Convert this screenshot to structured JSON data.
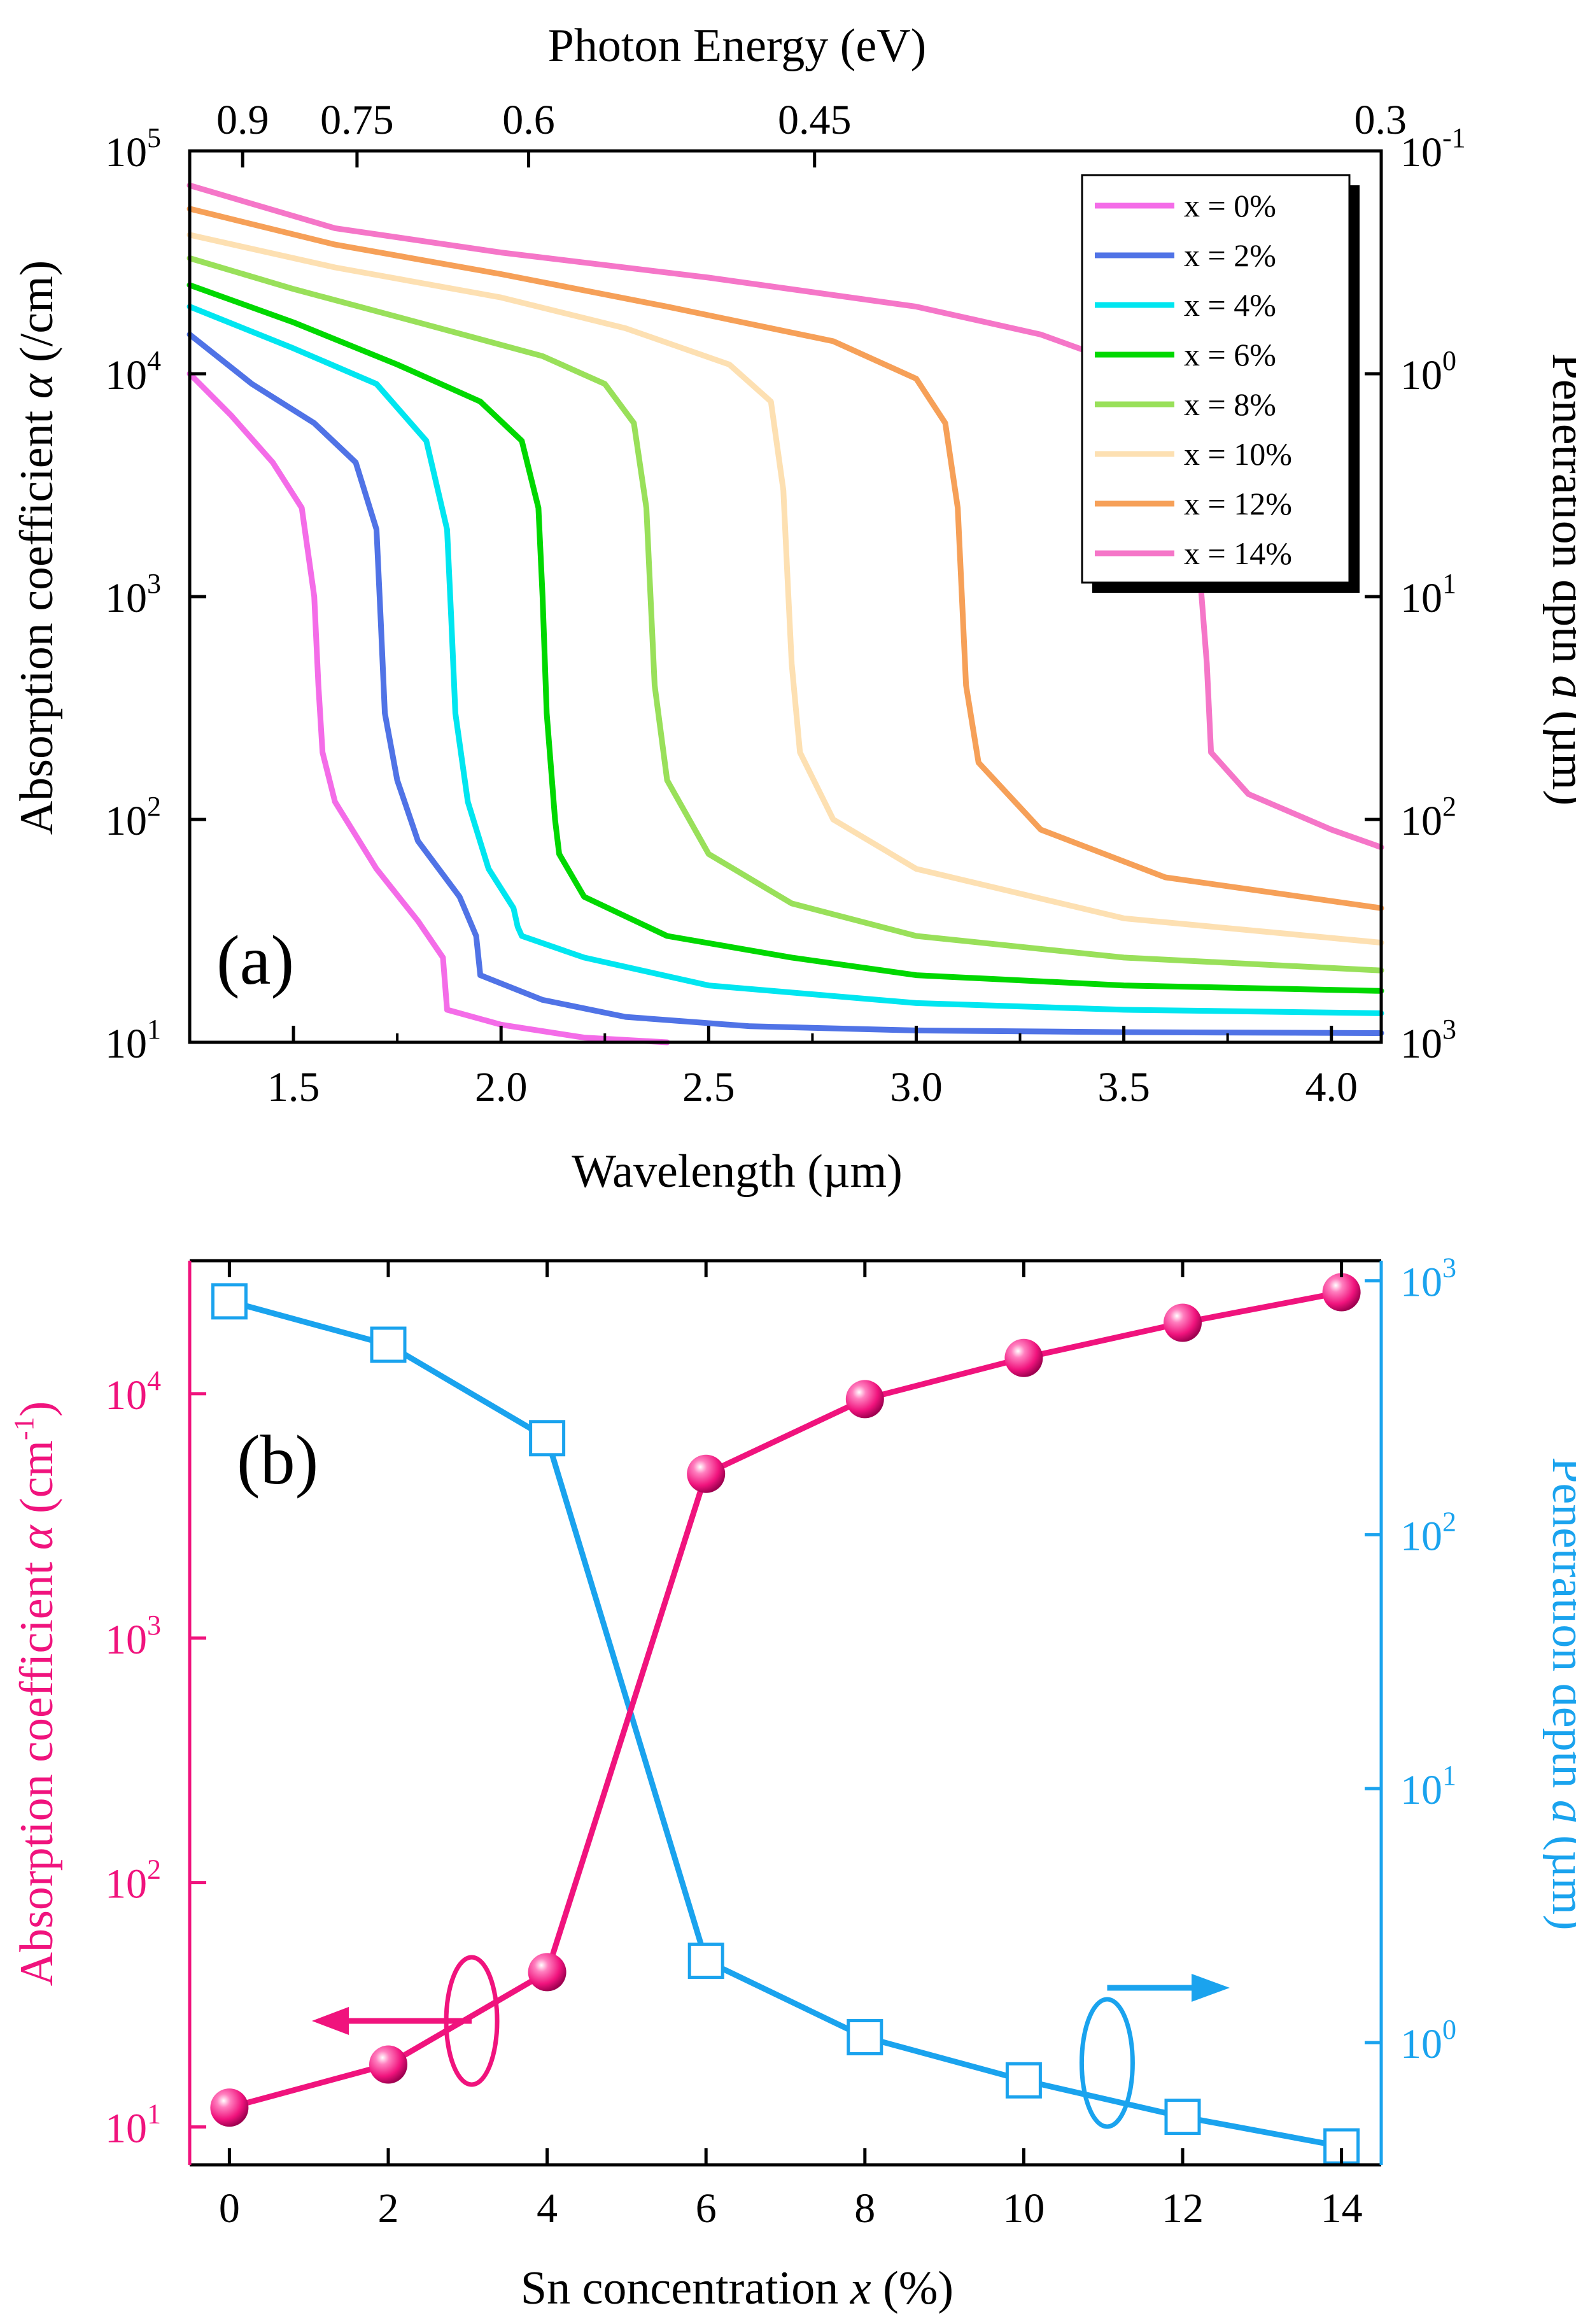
{
  "panels": [
    {
      "label": "(a)",
      "chart_data": {
        "type": "line",
        "title": "",
        "xlabel": "Wavelength (µm)",
        "ylabel": "Absorption coefficient α (/cm)",
        "ylabel_parts": {
          "pre": "Absorption coefficient ",
          "var": "α",
          "post": " (/cm)"
        },
        "y2label": "Penetration dpth d (µm)",
        "y2label_parts": {
          "pre": "Penetration dpth ",
          "var": "d",
          "post": " (µm)"
        },
        "x2label": "Photon Energy (eV)",
        "xscale": "linear",
        "yscale": "log",
        "xlim": [
          1.25,
          4.12
        ],
        "ylim": [
          10,
          100000
        ],
        "x_ticks": [
          1.5,
          2.0,
          2.5,
          3.0,
          3.5,
          4.0
        ],
        "x_tick_labels": [
          "1.5",
          "2.0",
          "2.5",
          "3.0",
          "3.5",
          "4.0"
        ],
        "y_ticks": [
          {
            "value": 10,
            "base": "10",
            "exp": "1"
          },
          {
            "value": 100,
            "base": "10",
            "exp": "2"
          },
          {
            "value": 1000,
            "base": "10",
            "exp": "3"
          },
          {
            "value": 10000,
            "base": "10",
            "exp": "4"
          },
          {
            "value": 100000,
            "base": "10",
            "exp": "5"
          }
        ],
        "y2_ticks": [
          {
            "value": 100000,
            "base": "10",
            "exp": "-1"
          },
          {
            "value": 10000,
            "base": "10",
            "exp": "0"
          },
          {
            "value": 1000,
            "base": "10",
            "exp": "1"
          },
          {
            "value": 100,
            "base": "10",
            "exp": "2"
          },
          {
            "value": 10,
            "base": "10",
            "exp": "3"
          }
        ],
        "x2_ticks": [
          {
            "energy_eV": 0.9,
            "label": "0.9"
          },
          {
            "energy_eV": 0.75,
            "label": "0.75"
          },
          {
            "energy_eV": 0.6,
            "label": "0.6"
          },
          {
            "energy_eV": 0.45,
            "label": "0.45"
          },
          {
            "energy_eV": 0.3,
            "label": "0.3"
          }
        ],
        "legend_position": "top-right",
        "series": [
          {
            "name": "x = 0%",
            "color": "#f46ce8",
            "points": [
              [
                1.25,
                10000
              ],
              [
                1.35,
                6500
              ],
              [
                1.45,
                4000
              ],
              [
                1.52,
                2500
              ],
              [
                1.55,
                1000
              ],
              [
                1.56,
                400
              ],
              [
                1.57,
                200
              ],
              [
                1.6,
                120
              ],
              [
                1.7,
                60
              ],
              [
                1.8,
                35
              ],
              [
                1.86,
                24
              ],
              [
                1.87,
                14
              ],
              [
                2.0,
                12
              ],
              [
                2.2,
                10.5
              ],
              [
                2.4,
                10
              ]
            ]
          },
          {
            "name": "x = 2%",
            "color": "#5073e6",
            "points": [
              [
                1.25,
                15000
              ],
              [
                1.4,
                9000
              ],
              [
                1.55,
                6000
              ],
              [
                1.65,
                4000
              ],
              [
                1.7,
                2000
              ],
              [
                1.71,
                800
              ],
              [
                1.72,
                300
              ],
              [
                1.75,
                150
              ],
              [
                1.8,
                80
              ],
              [
                1.9,
                45
              ],
              [
                1.94,
                30
              ],
              [
                1.95,
                20
              ],
              [
                2.1,
                15.5
              ],
              [
                2.3,
                13
              ],
              [
                2.6,
                11.8
              ],
              [
                3.0,
                11.3
              ],
              [
                3.5,
                11.1
              ],
              [
                4.12,
                11
              ]
            ]
          },
          {
            "name": "x = 4%",
            "color": "#00e6f0",
            "points": [
              [
                1.25,
                20000
              ],
              [
                1.5,
                13000
              ],
              [
                1.7,
                9000
              ],
              [
                1.82,
                5000
              ],
              [
                1.87,
                2000
              ],
              [
                1.88,
                800
              ],
              [
                1.89,
                300
              ],
              [
                1.92,
                120
              ],
              [
                1.97,
                60
              ],
              [
                2.03,
                40
              ],
              [
                2.04,
                33
              ],
              [
                2.05,
                30
              ],
              [
                2.2,
                24
              ],
              [
                2.5,
                18
              ],
              [
                3.0,
                15
              ],
              [
                3.5,
                14
              ],
              [
                4.12,
                13.5
              ]
            ]
          },
          {
            "name": "x = 6%",
            "color": "#00d800",
            "points": [
              [
                1.25,
                25000
              ],
              [
                1.5,
                17000
              ],
              [
                1.75,
                11000
              ],
              [
                1.95,
                7500
              ],
              [
                2.05,
                5000
              ],
              [
                2.09,
                2500
              ],
              [
                2.1,
                1000
              ],
              [
                2.11,
                300
              ],
              [
                2.13,
                100
              ],
              [
                2.14,
                70
              ],
              [
                2.2,
                45
              ],
              [
                2.4,
                30
              ],
              [
                2.7,
                24
              ],
              [
                3.0,
                20
              ],
              [
                3.5,
                18
              ],
              [
                4.12,
                17
              ]
            ]
          },
          {
            "name": "x = 8%",
            "color": "#99e05a",
            "points": [
              [
                1.25,
                33000
              ],
              [
                1.5,
                24000
              ],
              [
                1.8,
                17000
              ],
              [
                2.1,
                12000
              ],
              [
                2.25,
                9000
              ],
              [
                2.32,
                6000
              ],
              [
                2.35,
                2500
              ],
              [
                2.36,
                1000
              ],
              [
                2.37,
                400
              ],
              [
                2.4,
                150
              ],
              [
                2.5,
                70
              ],
              [
                2.7,
                42
              ],
              [
                3.0,
                30
              ],
              [
                3.5,
                24
              ],
              [
                4.12,
                21
              ]
            ]
          },
          {
            "name": "x = 10%",
            "color": "#fde0b2",
            "points": [
              [
                1.25,
                42000
              ],
              [
                1.6,
                30000
              ],
              [
                2.0,
                22000
              ],
              [
                2.3,
                16000
              ],
              [
                2.55,
                11000
              ],
              [
                2.65,
                7500
              ],
              [
                2.68,
                3000
              ],
              [
                2.69,
                1200
              ],
              [
                2.7,
                500
              ],
              [
                2.72,
                200
              ],
              [
                2.8,
                100
              ],
              [
                3.0,
                60
              ],
              [
                3.5,
                36
              ],
              [
                4.12,
                28
              ]
            ]
          },
          {
            "name": "x = 12%",
            "color": "#f6a058",
            "points": [
              [
                1.25,
                55000
              ],
              [
                1.6,
                38000
              ],
              [
                2.0,
                28000
              ],
              [
                2.4,
                20000
              ],
              [
                2.8,
                14000
              ],
              [
                3.0,
                9500
              ],
              [
                3.07,
                6000
              ],
              [
                3.1,
                2500
              ],
              [
                3.11,
                1000
              ],
              [
                3.12,
                400
              ],
              [
                3.15,
                180
              ],
              [
                3.3,
                90
              ],
              [
                3.6,
                55
              ],
              [
                4.12,
                40
              ]
            ]
          },
          {
            "name": "x = 14%",
            "color": "#f576c8",
            "points": [
              [
                1.25,
                70000
              ],
              [
                1.6,
                45000
              ],
              [
                2.0,
                35000
              ],
              [
                2.5,
                27000
              ],
              [
                3.0,
                20000
              ],
              [
                3.3,
                15000
              ],
              [
                3.5,
                11000
              ],
              [
                3.6,
                8000
              ],
              [
                3.65,
                4000
              ],
              [
                3.68,
                1500
              ],
              [
                3.7,
                500
              ],
              [
                3.71,
                200
              ],
              [
                3.8,
                130
              ],
              [
                4.0,
                90
              ],
              [
                4.12,
                75
              ]
            ]
          }
        ]
      }
    },
    {
      "label": "(b)",
      "chart_data": {
        "type": "line",
        "title": "",
        "xlabel": "Sn concentration x (%)",
        "xlabel_parts": {
          "pre": "Sn concentration ",
          "var": "x",
          "post": " (%)"
        },
        "ylabel": "Absorption coefficient α (cm-1)",
        "ylabel_parts": {
          "pre": "Absorption coefficient ",
          "var": "α",
          "post": " (cm",
          "sup": "-1",
          "close": ")"
        },
        "y2label": "Penetration depth d (µm)",
        "y2label_parts": {
          "pre": "Penetration depth ",
          "var": "d",
          "post": " (µm)"
        },
        "xlim": [
          -0.5,
          14.5
        ],
        "ylim": [
          7,
          35000
        ],
        "y2lim": [
          0.33,
          1200
        ],
        "x_ticks": [
          0,
          2,
          4,
          6,
          8,
          10,
          12,
          14
        ],
        "x_tick_labels": [
          "0",
          "2",
          "4",
          "6",
          "8",
          "10",
          "12",
          "14"
        ],
        "y_ticks": [
          {
            "value": 10,
            "base": "10",
            "exp": "1"
          },
          {
            "value": 100,
            "base": "10",
            "exp": "2"
          },
          {
            "value": 1000,
            "base": "10",
            "exp": "3"
          },
          {
            "value": 10000,
            "base": "10",
            "exp": "4"
          }
        ],
        "y2_ticks": [
          {
            "value": 1,
            "base": "10",
            "exp": "0"
          },
          {
            "value": 10,
            "base": "10",
            "exp": "1"
          },
          {
            "value": 100,
            "base": "10",
            "exp": "2"
          },
          {
            "value": 1000,
            "base": "10",
            "exp": "3"
          }
        ],
        "colors": {
          "alpha": "#f0137d",
          "depth": "#1aa3ee"
        },
        "series": [
          {
            "name": "Absorption coefficient",
            "axis": "left",
            "marker": "sphere",
            "color": "#f0137d",
            "x": [
              0,
              2,
              4,
              6,
              8,
              10,
              12,
              14
            ],
            "values": [
              12,
              18,
              43,
              4700,
              9500,
              14000,
              19500,
              26000
            ]
          },
          {
            "name": "Penetration depth",
            "axis": "right",
            "marker": "open-square",
            "color": "#1aa3ee",
            "x": [
              0,
              2,
              4,
              6,
              8,
              10,
              12,
              14
            ],
            "values": [
              830,
              560,
              240,
              2.1,
              1.05,
              0.71,
              0.51,
              0.39
            ]
          }
        ]
      }
    }
  ]
}
